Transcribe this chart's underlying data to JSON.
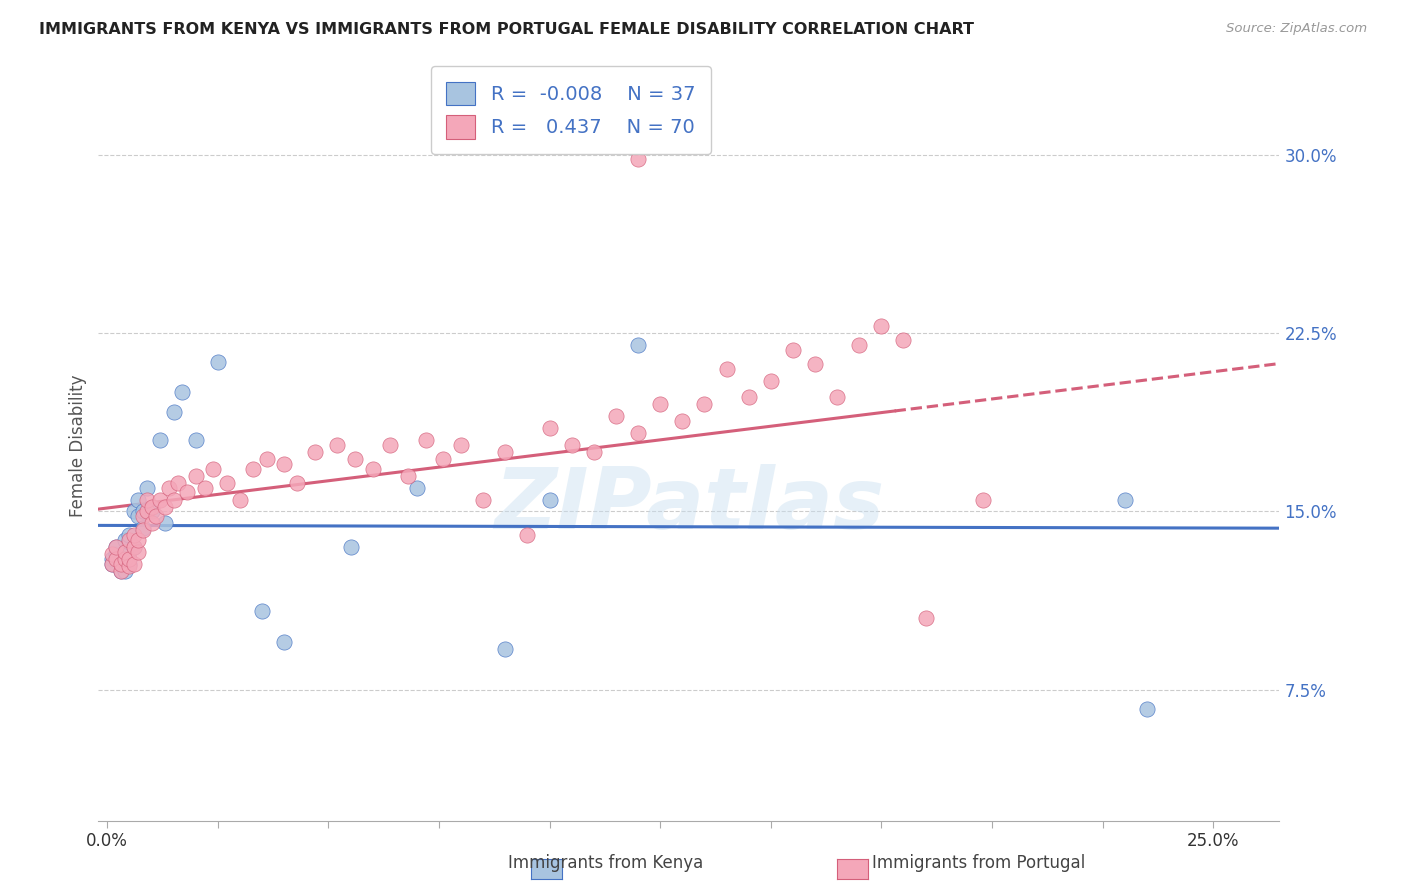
{
  "title": "IMMIGRANTS FROM KENYA VS IMMIGRANTS FROM PORTUGAL FEMALE DISABILITY CORRELATION CHART",
  "source": "Source: ZipAtlas.com",
  "ylabel": "Female Disability",
  "ytick_labels": [
    "30.0%",
    "22.5%",
    "15.0%",
    "7.5%"
  ],
  "ytick_values": [
    0.3,
    0.225,
    0.15,
    0.075
  ],
  "xtick_values": [
    0.0,
    0.025,
    0.05,
    0.075,
    0.1,
    0.125,
    0.15,
    0.175,
    0.2,
    0.225,
    0.25
  ],
  "xlim": [
    -0.002,
    0.265
  ],
  "ylim": [
    0.02,
    0.335
  ],
  "r_kenya": -0.008,
  "n_kenya": 37,
  "r_portugal": 0.437,
  "n_portugal": 70,
  "color_kenya": "#a8c4e0",
  "color_portugal": "#f4a7b9",
  "line_color_kenya": "#4472c4",
  "line_color_portugal": "#d45f7a",
  "watermark": "ZIPatlas",
  "legend_color": "#4472c4",
  "kenya_x": [
    0.001,
    0.001,
    0.002,
    0.002,
    0.003,
    0.003,
    0.003,
    0.004,
    0.004,
    0.004,
    0.005,
    0.005,
    0.005,
    0.005,
    0.006,
    0.006,
    0.007,
    0.007,
    0.008,
    0.008,
    0.009,
    0.01,
    0.012,
    0.013,
    0.015,
    0.017,
    0.02,
    0.025,
    0.035,
    0.04,
    0.055,
    0.09,
    0.23,
    0.235,
    0.07,
    0.1,
    0.12
  ],
  "kenya_y": [
    0.13,
    0.128,
    0.132,
    0.135,
    0.125,
    0.128,
    0.13,
    0.125,
    0.133,
    0.138,
    0.128,
    0.13,
    0.137,
    0.14,
    0.135,
    0.15,
    0.148,
    0.155,
    0.15,
    0.143,
    0.16,
    0.15,
    0.18,
    0.145,
    0.192,
    0.2,
    0.18,
    0.213,
    0.108,
    0.095,
    0.135,
    0.092,
    0.155,
    0.067,
    0.16,
    0.155,
    0.22
  ],
  "portugal_x": [
    0.001,
    0.001,
    0.002,
    0.002,
    0.003,
    0.003,
    0.004,
    0.004,
    0.005,
    0.005,
    0.005,
    0.006,
    0.006,
    0.006,
    0.007,
    0.007,
    0.008,
    0.008,
    0.009,
    0.009,
    0.01,
    0.01,
    0.011,
    0.012,
    0.013,
    0.014,
    0.015,
    0.016,
    0.018,
    0.02,
    0.022,
    0.024,
    0.027,
    0.03,
    0.033,
    0.036,
    0.04,
    0.043,
    0.047,
    0.052,
    0.056,
    0.06,
    0.064,
    0.068,
    0.072,
    0.076,
    0.08,
    0.085,
    0.09,
    0.095,
    0.1,
    0.105,
    0.11,
    0.115,
    0.12,
    0.125,
    0.13,
    0.135,
    0.14,
    0.145,
    0.15,
    0.155,
    0.16,
    0.165,
    0.17,
    0.175,
    0.18,
    0.185,
    0.198,
    0.12
  ],
  "portugal_y": [
    0.128,
    0.132,
    0.13,
    0.135,
    0.125,
    0.128,
    0.13,
    0.133,
    0.127,
    0.13,
    0.138,
    0.128,
    0.135,
    0.14,
    0.133,
    0.138,
    0.148,
    0.142,
    0.15,
    0.155,
    0.145,
    0.152,
    0.148,
    0.155,
    0.152,
    0.16,
    0.155,
    0.162,
    0.158,
    0.165,
    0.16,
    0.168,
    0.162,
    0.155,
    0.168,
    0.172,
    0.17,
    0.162,
    0.175,
    0.178,
    0.172,
    0.168,
    0.178,
    0.165,
    0.18,
    0.172,
    0.178,
    0.155,
    0.175,
    0.14,
    0.185,
    0.178,
    0.175,
    0.19,
    0.183,
    0.195,
    0.188,
    0.195,
    0.21,
    0.198,
    0.205,
    0.218,
    0.212,
    0.198,
    0.22,
    0.228,
    0.222,
    0.105,
    0.155,
    0.298
  ]
}
